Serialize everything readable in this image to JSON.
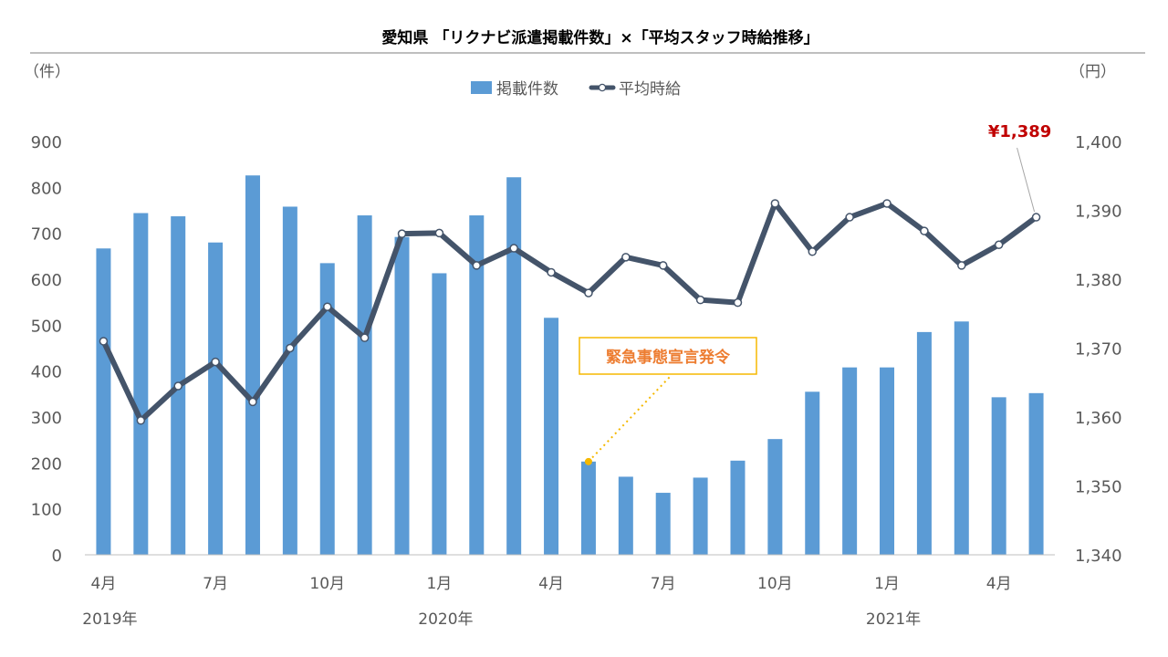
{
  "chart_data": {
    "type": "bar+line",
    "title": "愛知県 「リクナビ派遣掲載件数」×「平均スタッフ時給推移」",
    "y_left_unit": "（件）",
    "y_right_unit": "（円）",
    "y_left_range": [
      0,
      900
    ],
    "y_right_range": [
      1340,
      1400
    ],
    "y_left_ticks": [
      "0",
      "100",
      "200",
      "300",
      "400",
      "500",
      "600",
      "700",
      "800",
      "900"
    ],
    "y_right_ticks": [
      "1,340",
      "1,350",
      "1,360",
      "1,370",
      "1,380",
      "1,390",
      "1,400"
    ],
    "categories": [
      "2019-04",
      "2019-05",
      "2019-06",
      "2019-07",
      "2019-08",
      "2019-09",
      "2019-10",
      "2019-11",
      "2019-12",
      "2020-01",
      "2020-02",
      "2020-03",
      "2020-04",
      "2020-05",
      "2020-06",
      "2020-07",
      "2020-08",
      "2020-09",
      "2020-10",
      "2020-11",
      "2020-12",
      "2021-01",
      "2021-02",
      "2021-03",
      "2021-04",
      "2021-05"
    ],
    "x_tick_labels": [
      {
        "index": 0,
        "label": "4月"
      },
      {
        "index": 3,
        "label": "7月"
      },
      {
        "index": 6,
        "label": "10月"
      },
      {
        "index": 9,
        "label": "1月"
      },
      {
        "index": 12,
        "label": "4月"
      },
      {
        "index": 15,
        "label": "7月"
      },
      {
        "index": 18,
        "label": "10月"
      },
      {
        "index": 21,
        "label": "1月"
      },
      {
        "index": 24,
        "label": "4月"
      }
    ],
    "year_labels": [
      {
        "index": 0,
        "label": "2019年"
      },
      {
        "index": 9,
        "label": "2020年"
      },
      {
        "index": 21,
        "label": "2021年"
      }
    ],
    "series": [
      {
        "name": "掲載件数",
        "type": "bar",
        "axis": "left",
        "color": "#5b9bd5",
        "values": [
          667,
          744,
          737,
          680,
          826,
          758,
          635,
          739,
          692,
          613,
          739,
          822,
          516,
          203,
          170,
          135,
          168,
          205,
          252,
          355,
          408,
          408,
          485,
          508,
          343,
          352
        ]
      },
      {
        "name": "平均時給",
        "type": "line",
        "axis": "right",
        "color": "#44546a",
        "values": [
          1371,
          1359.5,
          1364.5,
          1368,
          1362.2,
          1370,
          1376,
          1371.5,
          1386.6,
          1386.7,
          1382,
          1384.5,
          1381,
          1378,
          1383.2,
          1382,
          1377,
          1376.6,
          1391,
          1384,
          1389,
          1391,
          1387,
          1382,
          1385,
          1389
        ]
      }
    ],
    "annotations": {
      "last_value_label": "¥1,389",
      "callout": {
        "text": "緊急事態宣言発令",
        "index": 13
      }
    },
    "legend": {
      "position": "top"
    },
    "grid": false
  }
}
